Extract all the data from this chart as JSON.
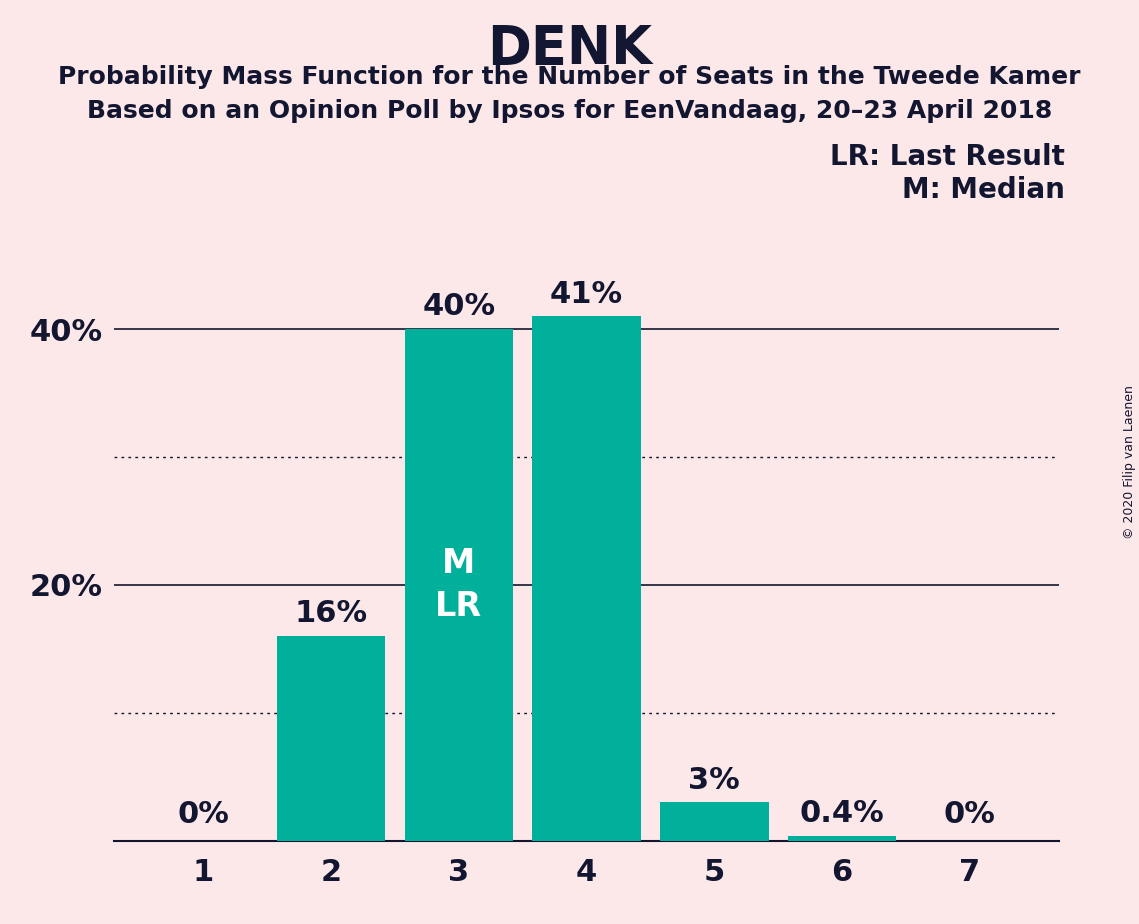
{
  "title": "DENK",
  "subtitle1": "Probability Mass Function for the Number of Seats in the Tweede Kamer",
  "subtitle2": "Based on an Opinion Poll by Ipsos for EenVandaag, 20–23 April 2018",
  "copyright": "© 2020 Filip van Laenen",
  "categories": [
    1,
    2,
    3,
    4,
    5,
    6,
    7
  ],
  "values": [
    0.0,
    0.16,
    0.4,
    0.41,
    0.03,
    0.004,
    0.0
  ],
  "bar_labels": [
    "0%",
    "16%",
    "40%",
    "41%",
    "3%",
    "0.4%",
    "0%"
  ],
  "bar_color": "#00b09b",
  "background_color": "#fce8e8",
  "text_color": "#131630",
  "legend_lr_text": "LR: Last Result",
  "legend_m_text": "M: Median",
  "yticks": [
    0.0,
    0.2,
    0.4
  ],
  "ytick_labels": [
    "",
    "20%",
    "40%"
  ],
  "solid_gridlines": [
    0.2,
    0.4
  ],
  "dotted_gridlines": [
    0.1,
    0.3
  ],
  "ylim": [
    0,
    0.455
  ],
  "title_fontsize": 38,
  "subtitle_fontsize": 18,
  "bar_label_fontsize": 22,
  "inside_label_fontsize": 24,
  "ytick_fontsize": 22,
  "xtick_fontsize": 22,
  "legend_fontsize": 20
}
